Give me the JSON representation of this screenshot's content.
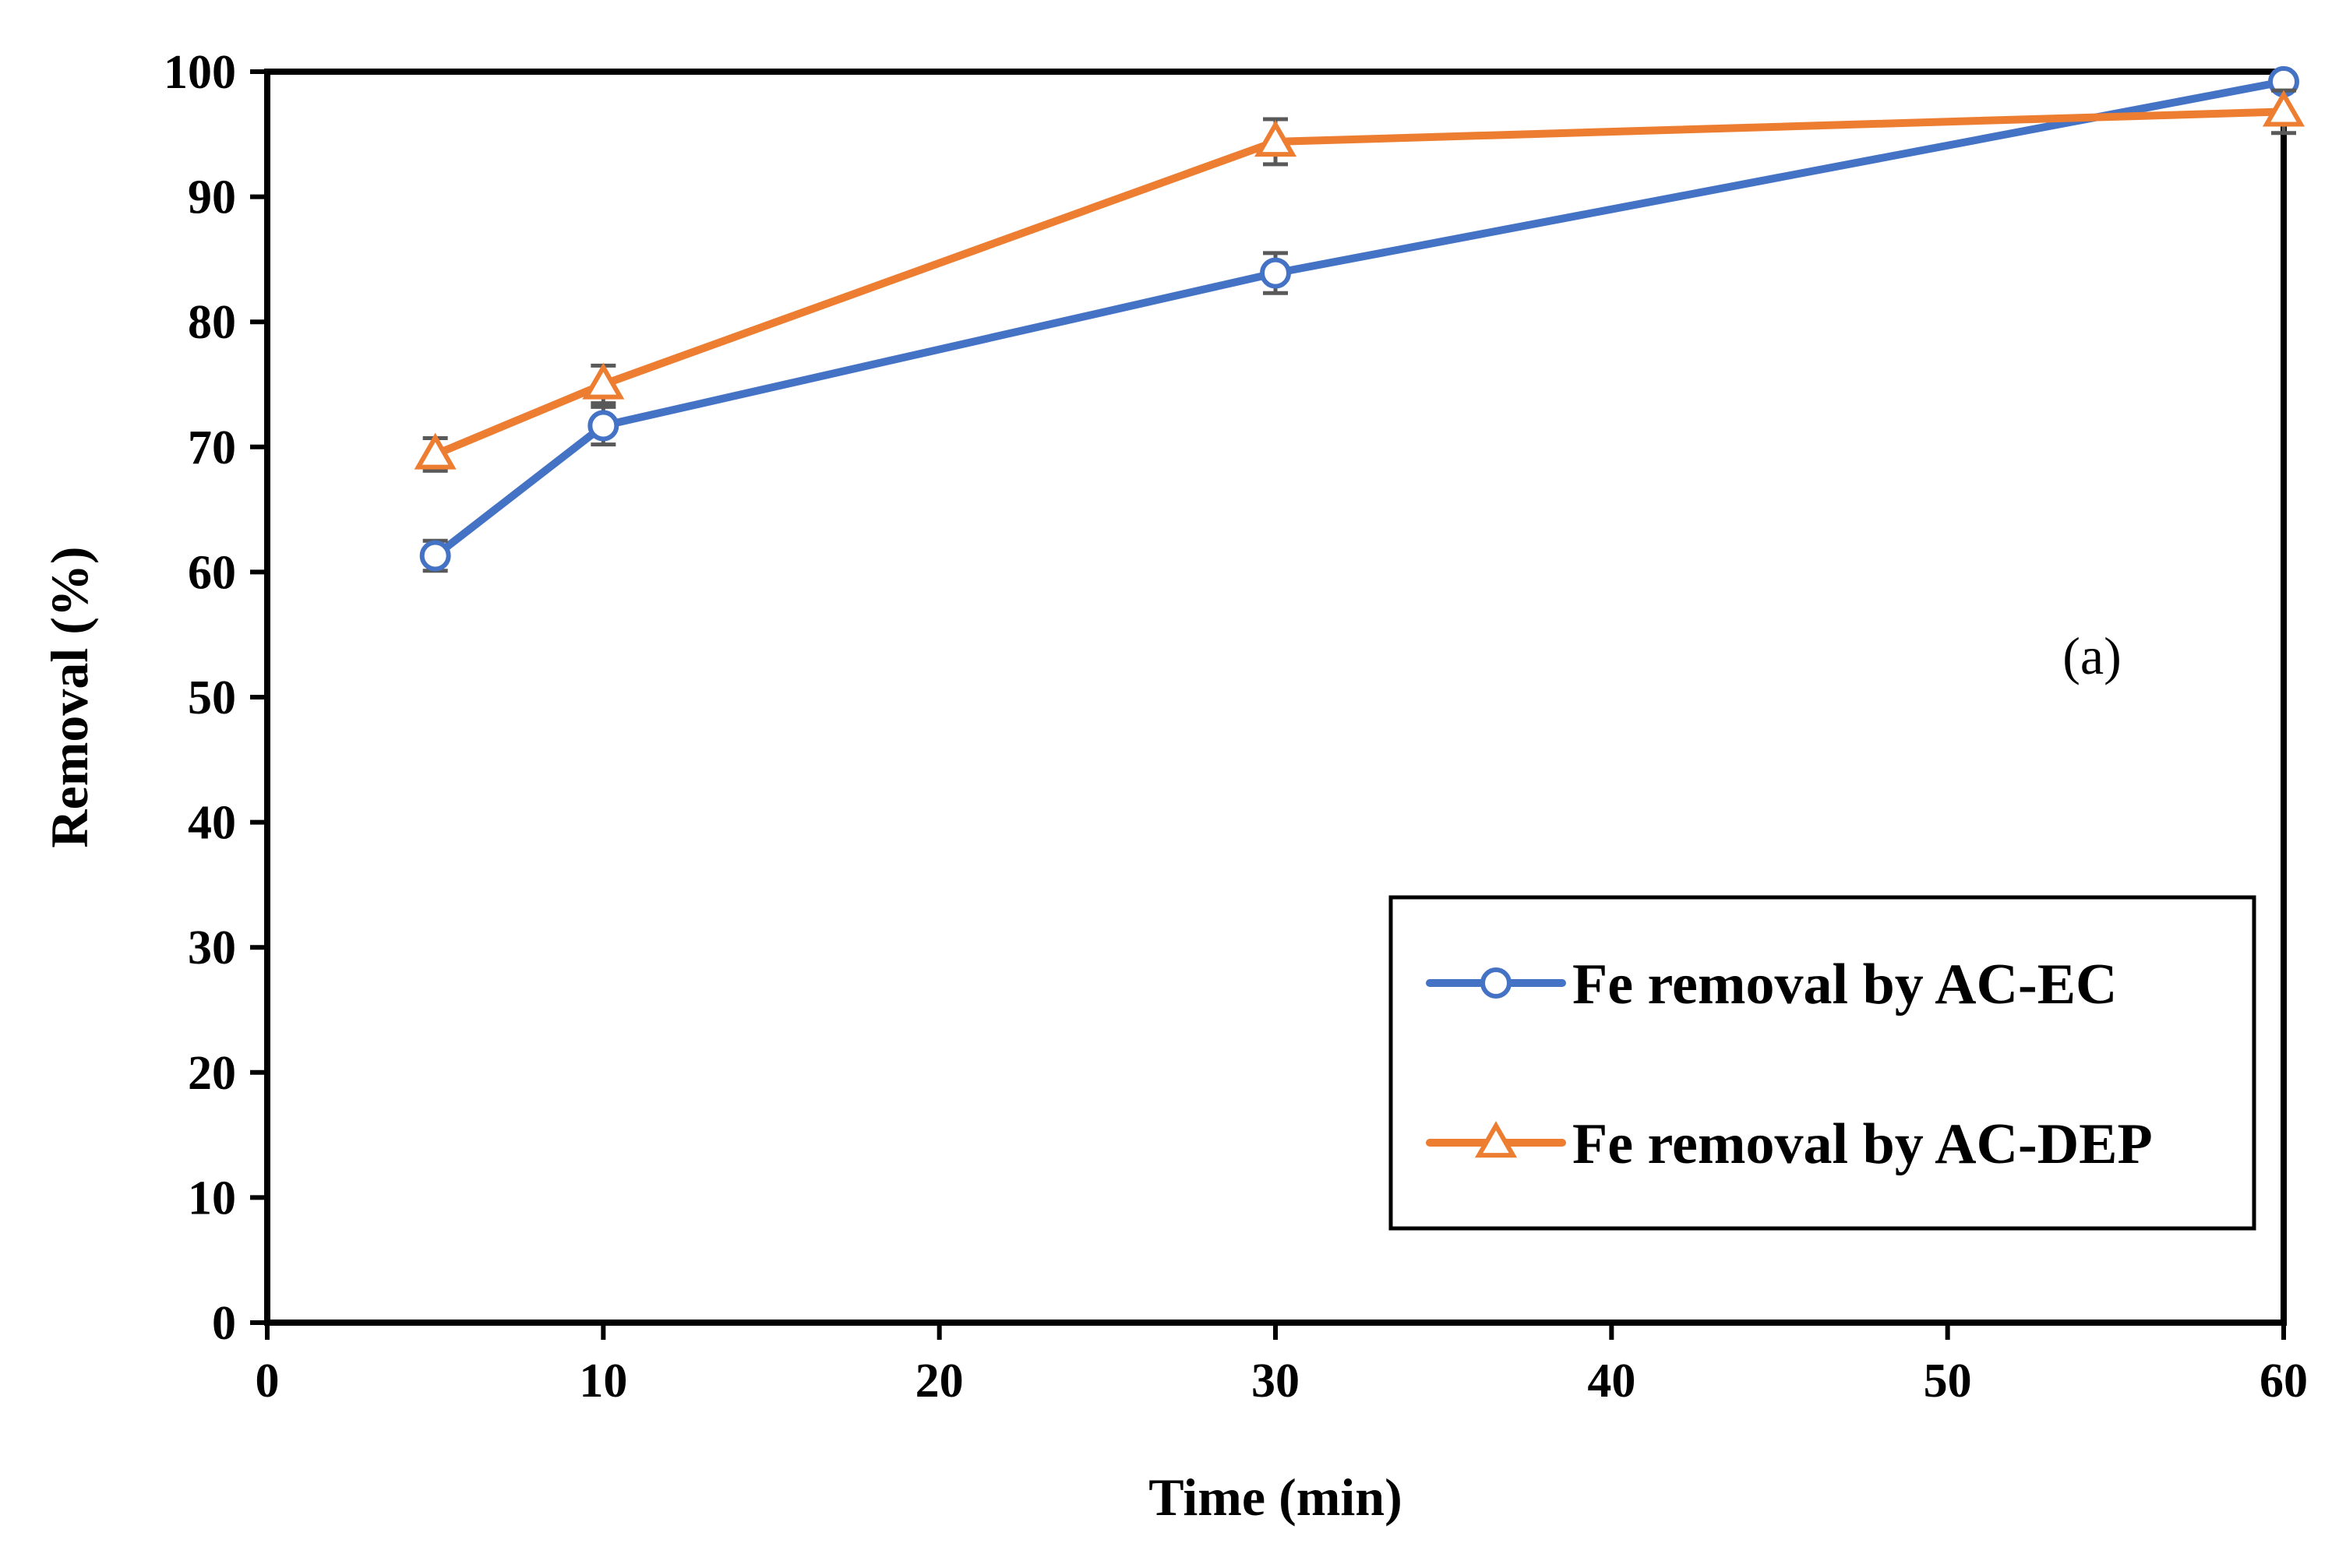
{
  "chart_data": {
    "type": "line",
    "title": "",
    "xlabel": "Time (min)",
    "ylabel": "Removal (%)",
    "xlim": [
      0,
      60
    ],
    "ylim": [
      0,
      100
    ],
    "xticks": [
      0,
      10,
      20,
      30,
      40,
      50,
      60
    ],
    "yticks": [
      0,
      10,
      20,
      30,
      40,
      50,
      60,
      70,
      80,
      90,
      100
    ],
    "grid": false,
    "legend_position": "bottom-right",
    "annotation": "(a)",
    "series": [
      {
        "name": "Fe removal by AC-EC",
        "color": "#4472C4",
        "marker": "circle",
        "x": [
          5,
          10,
          30,
          60
        ],
        "y": [
          61.3,
          71.7,
          83.9,
          99.2
        ],
        "error": [
          1.2,
          1.5,
          1.6,
          0.6
        ]
      },
      {
        "name": "Fe removal by AC-DEP",
        "color": "#ED7D31",
        "marker": "triangle",
        "x": [
          5,
          10,
          30,
          60
        ],
        "y": [
          69.4,
          75.0,
          94.4,
          96.8
        ],
        "error": [
          1.3,
          1.5,
          1.8,
          1.7
        ]
      }
    ],
    "error_bar_color": "#595959"
  }
}
